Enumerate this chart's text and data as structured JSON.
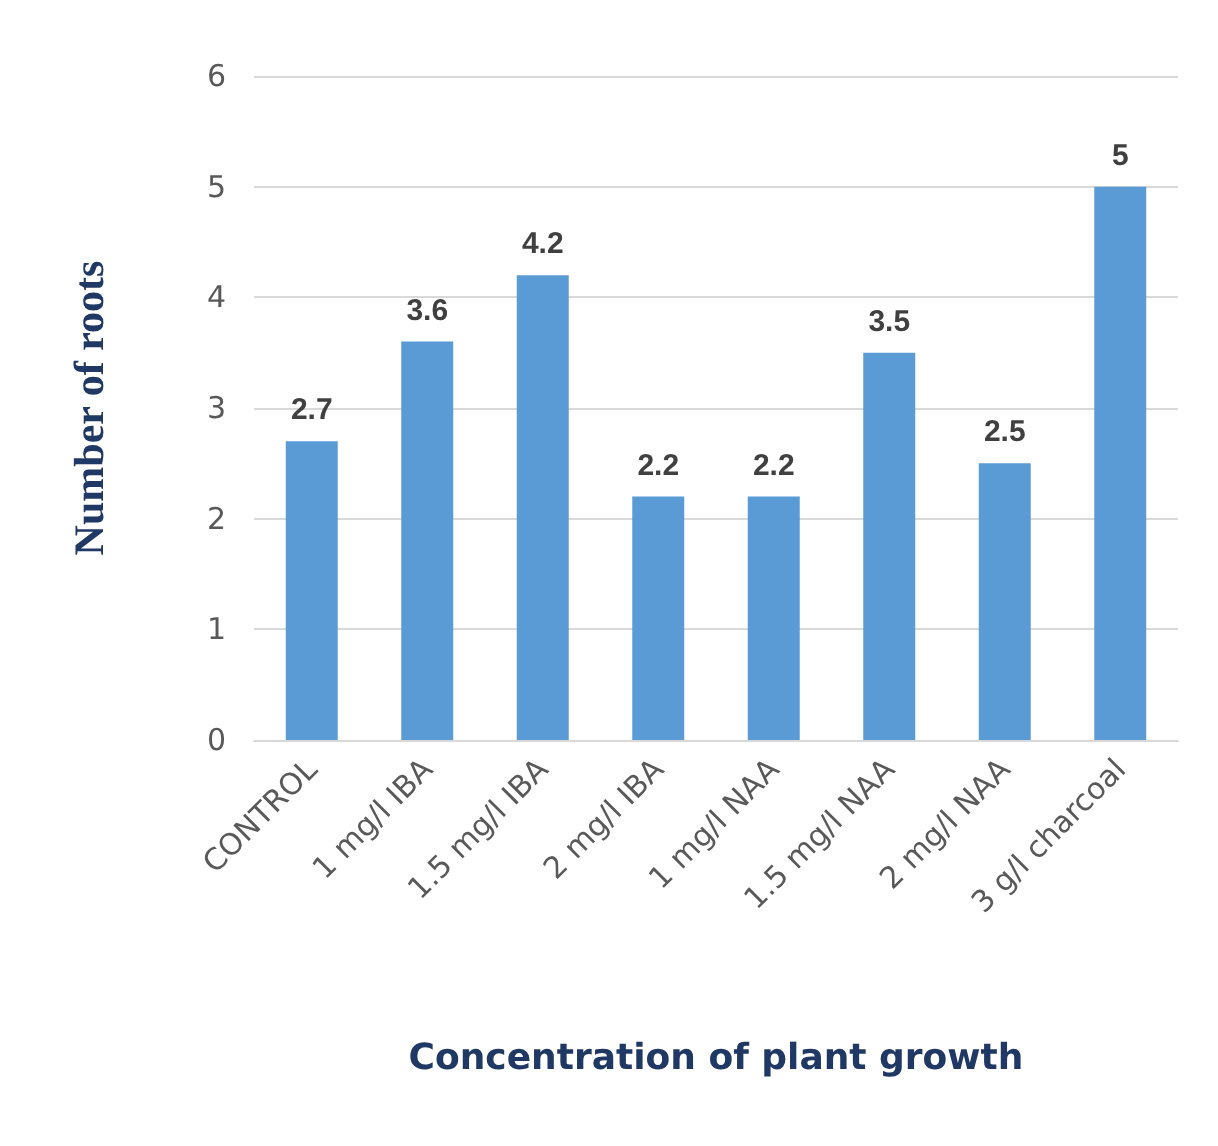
{
  "chart_data": {
    "type": "bar",
    "xlabel": "Concentration of plant growth",
    "ylabel": "Number of roots",
    "categories": [
      "CONTROL",
      "1 mg/l IBA",
      "1.5 mg/l IBA",
      "2 mg/l IBA",
      "1 mg/l NAA",
      "1.5 mg/l NAA",
      "2 mg/l NAA",
      "3 g/l charcoal"
    ],
    "values": [
      2.7,
      3.6,
      4.2,
      2.2,
      2.2,
      3.5,
      2.5,
      5
    ],
    "color": "#5b9bd5",
    "ylim": [
      0,
      6
    ],
    "yticks": [
      0,
      1,
      2,
      3,
      4,
      5,
      6
    ],
    "grid": "y",
    "data_labels": true
  }
}
